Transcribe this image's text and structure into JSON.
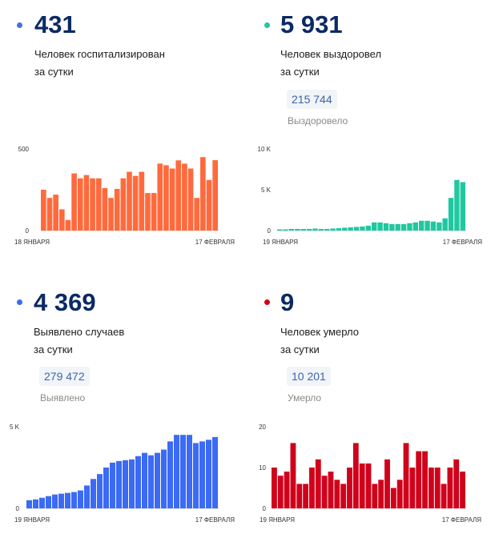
{
  "panels": [
    {
      "value": "431",
      "caption1": "Человек госпитализирован",
      "caption2": "за сутки",
      "total": null,
      "total_label": null,
      "color": "#4a6fe3"
    },
    {
      "value": "5 931",
      "caption1": "Человек выздоровел",
      "caption2": "за сутки",
      "total": "215 744",
      "total_label": "Выздоровело",
      "color": "#1fc8a0"
    },
    {
      "value": "4 369",
      "caption1": "Выявлено случаев",
      "caption2": "за сутки",
      "total": "279 472",
      "total_label": "Выявлено",
      "color": "#3b6af5"
    },
    {
      "value": "9",
      "caption1": "Человек умерло",
      "caption2": "за сутки",
      "total": "10 201",
      "total_label": "Умерло",
      "color": "#d0021b"
    }
  ],
  "chart_data": [
    {
      "type": "bar",
      "color": "#ff6a3d",
      "ylim": [
        0,
        500
      ],
      "yticks": [
        {
          "v": 0,
          "label": "0"
        },
        {
          "v": 500,
          "label": "500"
        }
      ],
      "x_start_label": "18 ЯНВАРЯ",
      "x_end_label": "17 ФЕВРАЛЯ",
      "values": [
        250,
        200,
        220,
        130,
        65,
        350,
        320,
        340,
        320,
        320,
        260,
        200,
        255,
        320,
        360,
        335,
        360,
        230,
        230,
        410,
        400,
        380,
        430,
        410,
        380,
        200,
        450,
        310,
        431
      ]
    },
    {
      "type": "bar",
      "color": "#1fc8a0",
      "ylim": [
        0,
        10000
      ],
      "yticks": [
        {
          "v": 0,
          "label": "0"
        },
        {
          "v": 5000,
          "label": "5 K"
        },
        {
          "v": 10000,
          "label": "10 K"
        }
      ],
      "x_start_label": "19 ЯНВАРЯ",
      "x_end_label": "17 ФЕВРАЛЯ",
      "values": [
        150,
        150,
        200,
        200,
        200,
        200,
        250,
        200,
        200,
        250,
        300,
        350,
        400,
        450,
        500,
        600,
        1000,
        1000,
        900,
        800,
        800,
        800,
        900,
        1000,
        1200,
        1200,
        1100,
        1000,
        1500,
        4000,
        6200,
        5931
      ]
    },
    {
      "type": "bar",
      "color": "#3b6af5",
      "ylim": [
        0,
        5000
      ],
      "yticks": [
        {
          "v": 0,
          "label": "0"
        },
        {
          "v": 5000,
          "label": "5 K"
        }
      ],
      "x_start_label": "19 ЯНВАРЯ",
      "x_end_label": "17 ФЕВРАЛЯ",
      "values": [
        500,
        550,
        650,
        750,
        850,
        900,
        950,
        1000,
        1100,
        1400,
        1800,
        2100,
        2500,
        2800,
        2900,
        2950,
        3000,
        3200,
        3400,
        3250,
        3400,
        3600,
        4100,
        4500,
        4500,
        4500,
        4000,
        4100,
        4200,
        4369
      ]
    },
    {
      "type": "bar",
      "color": "#d0021b",
      "ylim": [
        0,
        20
      ],
      "yticks": [
        {
          "v": 0,
          "label": "0"
        },
        {
          "v": 10,
          "label": "10"
        },
        {
          "v": 20,
          "label": "20"
        }
      ],
      "x_start_label": "19 ЯНВАРЯ",
      "x_end_label": "17 ФЕВРАЛЯ",
      "values": [
        10,
        8,
        9,
        16,
        6,
        6,
        10,
        12,
        8,
        9,
        7,
        6,
        10,
        16,
        11,
        11,
        6,
        7,
        12,
        5,
        7,
        16,
        10,
        14,
        14,
        10,
        10,
        6,
        10,
        12,
        9
      ]
    }
  ]
}
